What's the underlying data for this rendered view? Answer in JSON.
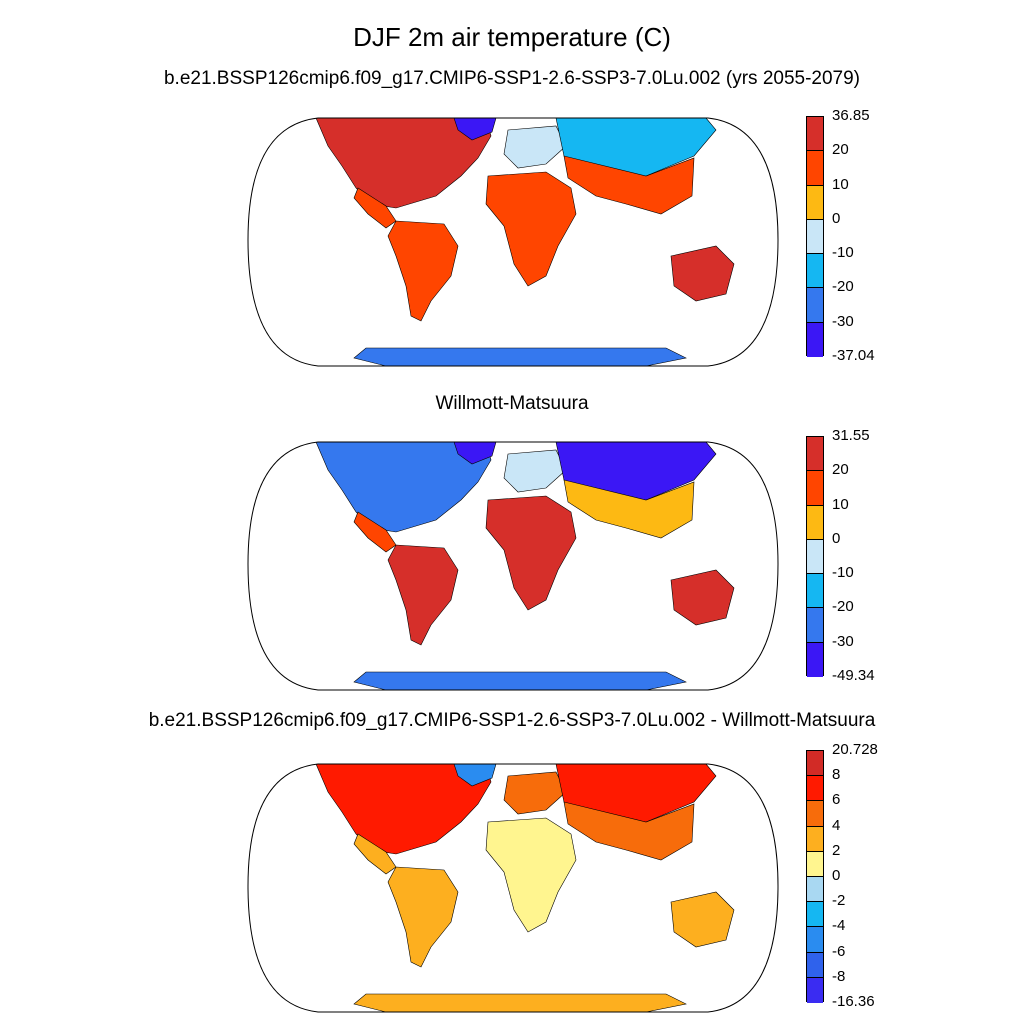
{
  "title": "DJF 2m air temperature (C)",
  "panels": [
    {
      "title": "b.e21.BSSP126cmip6.f09_g17.CMIP6-SSP1-2.6-SSP3-7.0Lu.002 (yrs 2055-2079)",
      "colorbar_labels": [
        "36.85",
        "20",
        "10",
        "0",
        "-10",
        "-20",
        "-30",
        "-37.04"
      ],
      "colorbar_colors": [
        "#d62f2a",
        "#ff4500",
        "#fdb913",
        "#c9e6f7",
        "#15b7f2",
        "#3578ee",
        "#3b17f5"
      ]
    },
    {
      "title": "Willmott-Matsuura",
      "colorbar_labels": [
        "31.55",
        "20",
        "10",
        "0",
        "-10",
        "-20",
        "-30",
        "-49.34"
      ],
      "colorbar_colors": [
        "#d62f2a",
        "#ff4500",
        "#fdb913",
        "#c9e6f7",
        "#15b7f2",
        "#3578ee",
        "#3b17f5"
      ]
    },
    {
      "title": "b.e21.BSSP126cmip6.f09_g17.CMIP6-SSP1-2.6-SSP3-7.0Lu.002 - Willmott-Matsuura",
      "colorbar_labels": [
        "20.728",
        "8",
        "6",
        "4",
        "2",
        "0",
        "-2",
        "-4",
        "-6",
        "-8",
        "-16.36"
      ],
      "colorbar_colors": [
        "#d22b26",
        "#ff1a00",
        "#f76c0b",
        "#fdaf1f",
        "#fff58f",
        "#a9d8f2",
        "#15b7f2",
        "#2a8cf0",
        "#2f62ec",
        "#3a2cf2"
      ]
    }
  ]
}
